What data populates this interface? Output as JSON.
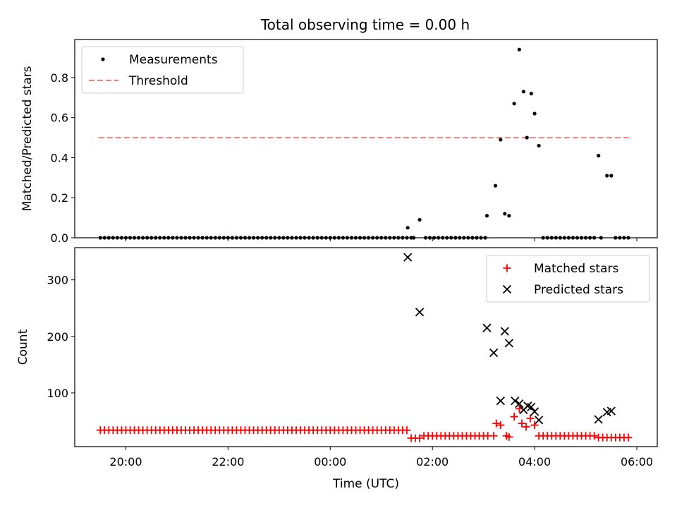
{
  "title": "Total observing time = 0.00 h",
  "colors": {
    "threshold": "#f08080",
    "matched": "#ff0000",
    "predicted": "#000000",
    "measurement": "#000000"
  },
  "chart_data": [
    {
      "type": "scatter",
      "ylabel": "Matched/Predicted stars",
      "xlim": [
        "19:00",
        "06:24"
      ],
      "ylim": [
        0,
        0.99
      ],
      "yticks": [
        0.0,
        0.2,
        0.4,
        0.6,
        0.8
      ],
      "ytick_labels": [
        "0.0",
        "0.2",
        "0.4",
        "0.6",
        "0.8"
      ],
      "legend": {
        "placement": "upper-left",
        "entries": [
          "Measurements",
          "Threshold"
        ]
      },
      "threshold": {
        "name": "Threshold",
        "value": 0.5,
        "x": [
          "19:28",
          "05:54"
        ]
      },
      "series": [
        {
          "name": "Measurements",
          "zero_runs": [
            {
              "from": "19:30",
              "to": "01:30",
              "step_min": 5
            },
            {
              "from": "01:52",
              "to": "02:58",
              "step_min": 5
            },
            {
              "from": "04:10",
              "to": "05:10",
              "step_min": 5
            },
            {
              "from": "05:35",
              "to": "05:50",
              "step_min": 5
            }
          ],
          "points": [
            {
              "x": "01:35",
              "y": 0.0
            },
            {
              "x": "01:38",
              "y": 0.0
            },
            {
              "x": "01:31",
              "y": 0.05
            },
            {
              "x": "01:45",
              "y": 0.09
            },
            {
              "x": "03:02",
              "y": 0.0
            },
            {
              "x": "03:04",
              "y": 0.11
            },
            {
              "x": "03:14",
              "y": 0.26
            },
            {
              "x": "03:20",
              "y": 0.49
            },
            {
              "x": "03:25",
              "y": 0.12
            },
            {
              "x": "03:30",
              "y": 0.11
            },
            {
              "x": "03:36",
              "y": 0.67
            },
            {
              "x": "03:42",
              "y": 0.94
            },
            {
              "x": "03:47",
              "y": 0.73
            },
            {
              "x": "03:51",
              "y": 0.5
            },
            {
              "x": "03:56",
              "y": 0.72
            },
            {
              "x": "04:00",
              "y": 0.62
            },
            {
              "x": "04:05",
              "y": 0.46
            },
            {
              "x": "05:15",
              "y": 0.41
            },
            {
              "x": "05:18",
              "y": 0.0
            },
            {
              "x": "05:25",
              "y": 0.31
            },
            {
              "x": "05:30",
              "y": 0.31
            }
          ]
        }
      ]
    },
    {
      "type": "scatter",
      "xlabel": "Time (UTC)",
      "ylabel": "Count",
      "xlim": [
        "19:00",
        "06:24"
      ],
      "ylim": [
        5,
        357
      ],
      "yticks": [
        100,
        200,
        300
      ],
      "ytick_labels": [
        "100",
        "200",
        "300"
      ],
      "xticks": [
        "20:00",
        "22:00",
        "00:00",
        "02:00",
        "04:00",
        "06:00"
      ],
      "legend": {
        "placement": "upper-right",
        "entries": [
          "Matched stars",
          "Predicted stars"
        ]
      },
      "series": [
        {
          "name": "Matched stars",
          "runs": [
            {
              "from": "19:30",
              "to": "01:30",
              "step_min": 5,
              "y": 34
            },
            {
              "from": "01:35",
              "to": "01:45",
              "step_min": 5,
              "y": 20
            },
            {
              "from": "01:50",
              "to": "03:05",
              "step_min": 5,
              "y": 24
            },
            {
              "from": "04:05",
              "to": "05:10",
              "step_min": 5,
              "y": 24
            },
            {
              "from": "05:15",
              "to": "05:50",
              "step_min": 5,
              "y": 21
            }
          ],
          "points": [
            {
              "x": "03:12",
              "y": 24
            },
            {
              "x": "03:15",
              "y": 46
            },
            {
              "x": "03:20",
              "y": 43
            },
            {
              "x": "03:27",
              "y": 24
            },
            {
              "x": "03:30",
              "y": 22
            },
            {
              "x": "03:36",
              "y": 58
            },
            {
              "x": "03:42",
              "y": 72
            },
            {
              "x": "03:45",
              "y": 46
            },
            {
              "x": "03:50",
              "y": 40
            },
            {
              "x": "03:55",
              "y": 55
            },
            {
              "x": "04:00",
              "y": 43
            }
          ]
        },
        {
          "name": "Predicted stars",
          "points": [
            {
              "x": "01:31",
              "y": 340
            },
            {
              "x": "01:45",
              "y": 243
            },
            {
              "x": "03:04",
              "y": 215
            },
            {
              "x": "03:12",
              "y": 171
            },
            {
              "x": "03:20",
              "y": 86
            },
            {
              "x": "03:25",
              "y": 209
            },
            {
              "x": "03:30",
              "y": 188
            },
            {
              "x": "03:37",
              "y": 86
            },
            {
              "x": "03:42",
              "y": 81
            },
            {
              "x": "03:47",
              "y": 70
            },
            {
              "x": "03:52",
              "y": 77
            },
            {
              "x": "03:56",
              "y": 75
            },
            {
              "x": "04:00",
              "y": 67
            },
            {
              "x": "04:05",
              "y": 52
            },
            {
              "x": "05:15",
              "y": 53
            },
            {
              "x": "05:25",
              "y": 66
            },
            {
              "x": "05:30",
              "y": 68
            }
          ]
        }
      ]
    }
  ]
}
